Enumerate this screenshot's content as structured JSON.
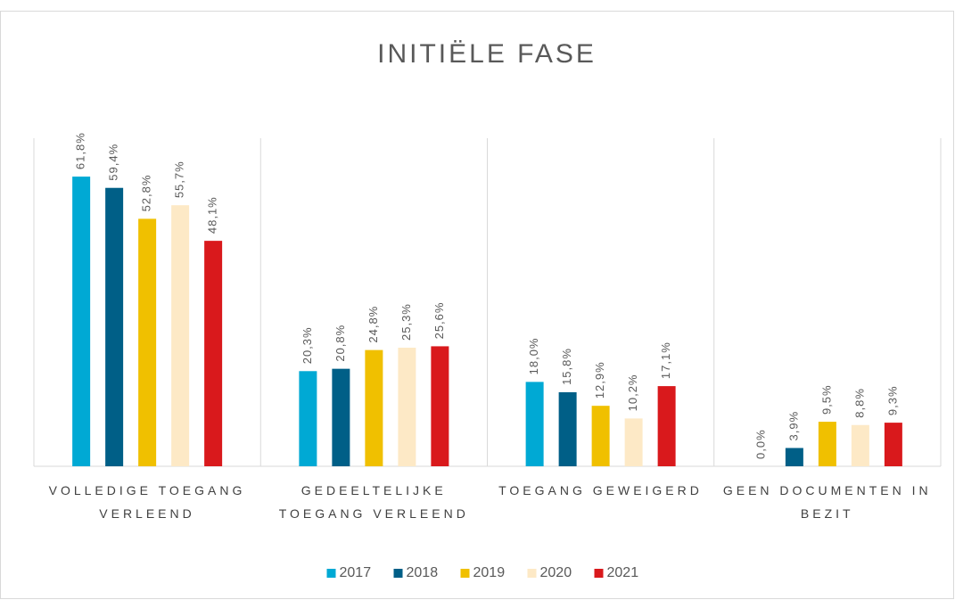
{
  "chart_data": {
    "type": "bar",
    "title": "INITIËLE FASE",
    "categories": [
      "VOLLEDIGE TOEGANG VERLEEND",
      "GEDEELTELIJKE TOEGANG VERLEEND",
      "TOEGANG GEWEIGERD",
      "GEEN DOCUMENTEN IN BEZIT"
    ],
    "series": [
      {
        "name": "2017",
        "color": "#00a9d4",
        "values": [
          61.8,
          20.3,
          18.0,
          0.0
        ],
        "value_labels": [
          "61,8%",
          "20,3%",
          "18,0%",
          "0,0%"
        ]
      },
      {
        "name": "2018",
        "color": "#005f87",
        "values": [
          59.4,
          20.8,
          15.8,
          3.9
        ],
        "value_labels": [
          "59,4%",
          "20,8%",
          "15,8%",
          "3,9%"
        ]
      },
      {
        "name": "2019",
        "color": "#f0c000",
        "values": [
          52.8,
          24.8,
          12.9,
          9.5
        ],
        "value_labels": [
          "52,8%",
          "24,8%",
          "12,9%",
          "9,5%"
        ]
      },
      {
        "name": "2020",
        "color": "#fde9c6",
        "values": [
          55.7,
          25.3,
          10.2,
          8.8
        ],
        "value_labels": [
          "55,7%",
          "25,3%",
          "10,2%",
          "8,8%"
        ]
      },
      {
        "name": "2021",
        "color": "#d9191c",
        "values": [
          48.1,
          25.6,
          17.1,
          9.3
        ],
        "value_labels": [
          "48,1%",
          "25,6%",
          "17,1%",
          "9,3%"
        ]
      }
    ],
    "ylim": [
      0,
      70
    ],
    "legend": "bottom"
  }
}
